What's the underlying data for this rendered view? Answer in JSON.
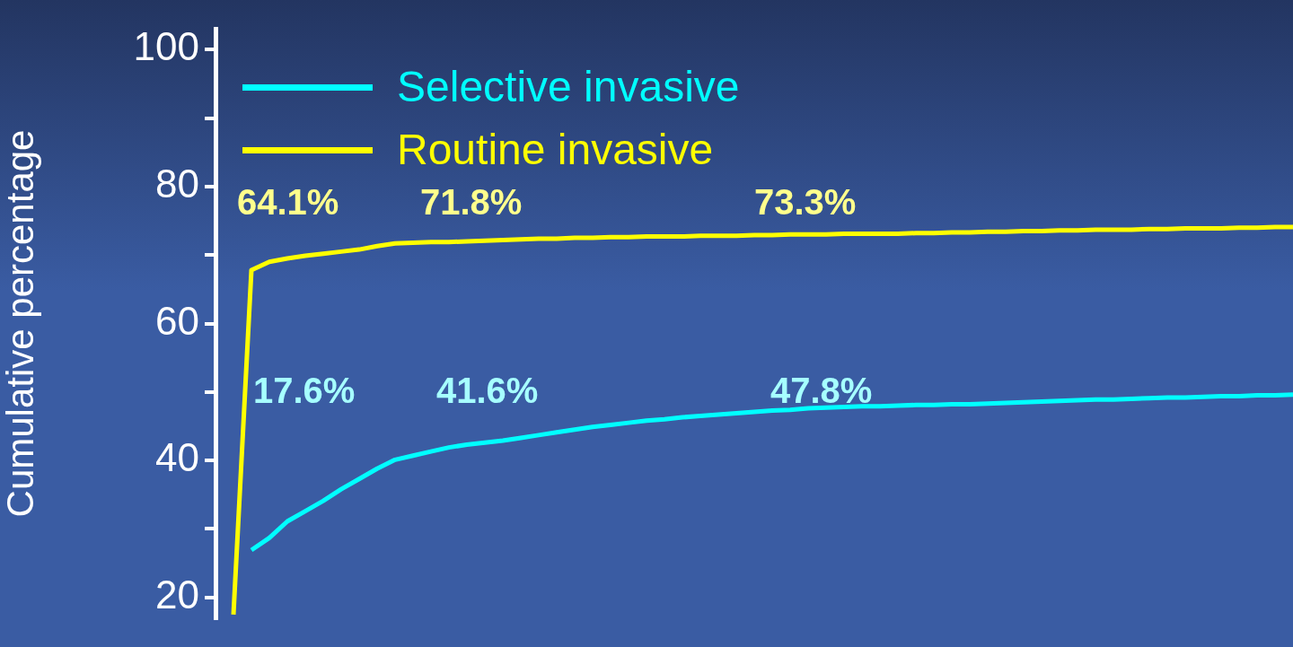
{
  "chart_data": {
    "type": "line",
    "ylabel": "Cumulative percentage",
    "categories": [
      null,
      null,
      null,
      null,
      null,
      null,
      null,
      null,
      null,
      null,
      null,
      null,
      null,
      null,
      null,
      null,
      null,
      null,
      null,
      null,
      null,
      null,
      null,
      null,
      null,
      null,
      null,
      null,
      null,
      null,
      null,
      null,
      null,
      null,
      null,
      null,
      null,
      null,
      null,
      null,
      null,
      null,
      null,
      null,
      null,
      null,
      null,
      null,
      null,
      null,
      null,
      null,
      null,
      null,
      null,
      null,
      null,
      null,
      null,
      null,
      null
    ],
    "series": [
      {
        "name": "Selective invasive",
        "color": "#00ffff",
        "values": [
          null,
          null,
          26.9,
          28.7,
          31.1,
          32.6,
          34.1,
          35.8,
          37.3,
          38.8,
          40.1,
          40.7,
          41.3,
          41.9,
          42.3,
          42.6,
          42.9,
          43.3,
          43.7,
          44.1,
          44.5,
          44.9,
          45.2,
          45.5,
          45.8,
          46.0,
          46.3,
          46.5,
          46.7,
          46.9,
          47.1,
          47.3,
          47.4,
          47.6,
          47.7,
          47.8,
          47.9,
          47.9,
          48.0,
          48.1,
          48.1,
          48.2,
          48.2,
          48.3,
          48.4,
          48.5,
          48.6,
          48.7,
          48.8,
          48.9,
          48.9,
          49.0,
          49.1,
          49.2,
          49.2,
          49.3,
          49.4,
          49.4,
          49.5,
          49.5,
          49.6
        ]
      },
      {
        "name": "Routine invasive",
        "color": "#ffff00",
        "values": [
          null,
          17.5,
          67.8,
          69.0,
          69.5,
          69.9,
          70.2,
          70.5,
          70.8,
          71.3,
          71.7,
          71.8,
          71.9,
          71.9,
          72.0,
          72.1,
          72.2,
          72.3,
          72.4,
          72.4,
          72.5,
          72.5,
          72.6,
          72.6,
          72.7,
          72.7,
          72.7,
          72.8,
          72.8,
          72.8,
          72.9,
          72.9,
          73.0,
          73.0,
          73.0,
          73.1,
          73.1,
          73.1,
          73.1,
          73.2,
          73.2,
          73.3,
          73.3,
          73.4,
          73.4,
          73.5,
          73.5,
          73.6,
          73.6,
          73.7,
          73.7,
          73.7,
          73.8,
          73.8,
          73.9,
          73.9,
          73.9,
          74.0,
          74.0,
          74.1,
          74.1
        ]
      }
    ],
    "ylim": [
      17,
      103
    ],
    "yticks": [
      20,
      {
        "value": 30,
        "label": null
      },
      40,
      {
        "value": 50,
        "label": null
      },
      60,
      {
        "value": 70,
        "label": null
      },
      80,
      {
        "value": 90,
        "label": null
      },
      100
    ],
    "grid": false,
    "legend": "top left",
    "annotations": [
      "64.1%",
      "71.8%",
      "73.3%",
      "17.6%",
      "41.6%",
      "47.8%"
    ]
  }
}
